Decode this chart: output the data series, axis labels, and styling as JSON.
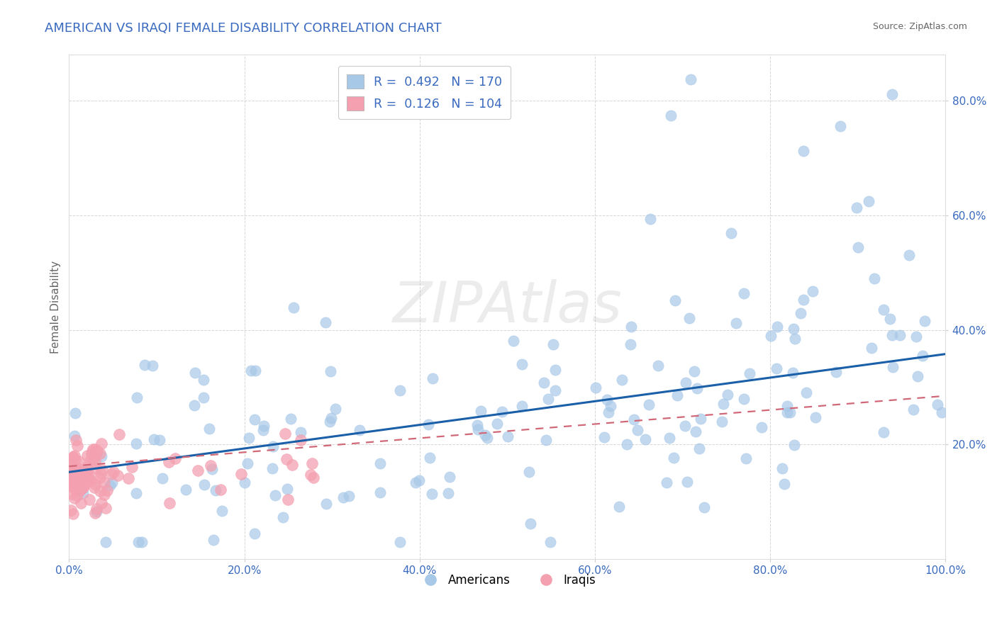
{
  "title": "AMERICAN VS IRAQI FEMALE DISABILITY CORRELATION CHART",
  "source_text": "Source: ZipAtlas.com",
  "ylabel": "Female Disability",
  "watermark": "ZIPAtlas",
  "legend_line1": "R =  0.492   N = 170",
  "legend_line2": "R =  0.126   N = 104",
  "xlim": [
    0,
    1.0
  ],
  "ylim": [
    0,
    0.88
  ],
  "xticks": [
    0.0,
    0.2,
    0.4,
    0.6,
    0.8,
    1.0
  ],
  "yticks": [
    0.2,
    0.4,
    0.6,
    0.8
  ],
  "ytick_labels": [
    "20.0%",
    "40.0%",
    "60.0%",
    "80.0%"
  ],
  "xtick_labels": [
    "0.0%",
    "20.0%",
    "40.0%",
    "60.0%",
    "80.0%",
    "100.0%"
  ],
  "american_N": 170,
  "iraqi_N": 104,
  "blue_scatter_color": "#a8c8e8",
  "pink_scatter_color": "#f4a0b0",
  "blue_line_color": "#1a5fa8",
  "pink_line_color": "#d06878",
  "title_color": "#3a6abf",
  "title_fontsize": 13,
  "axis_label_color": "#666666",
  "tick_label_color": "#3a6abf",
  "background_color": "#ffffff",
  "grid_color": "#cccccc",
  "legend_text_color": "#3a6abf",
  "legend_r_color": "#444444",
  "bottom_legend_label1": "Americans",
  "bottom_legend_label2": "Iraqis"
}
